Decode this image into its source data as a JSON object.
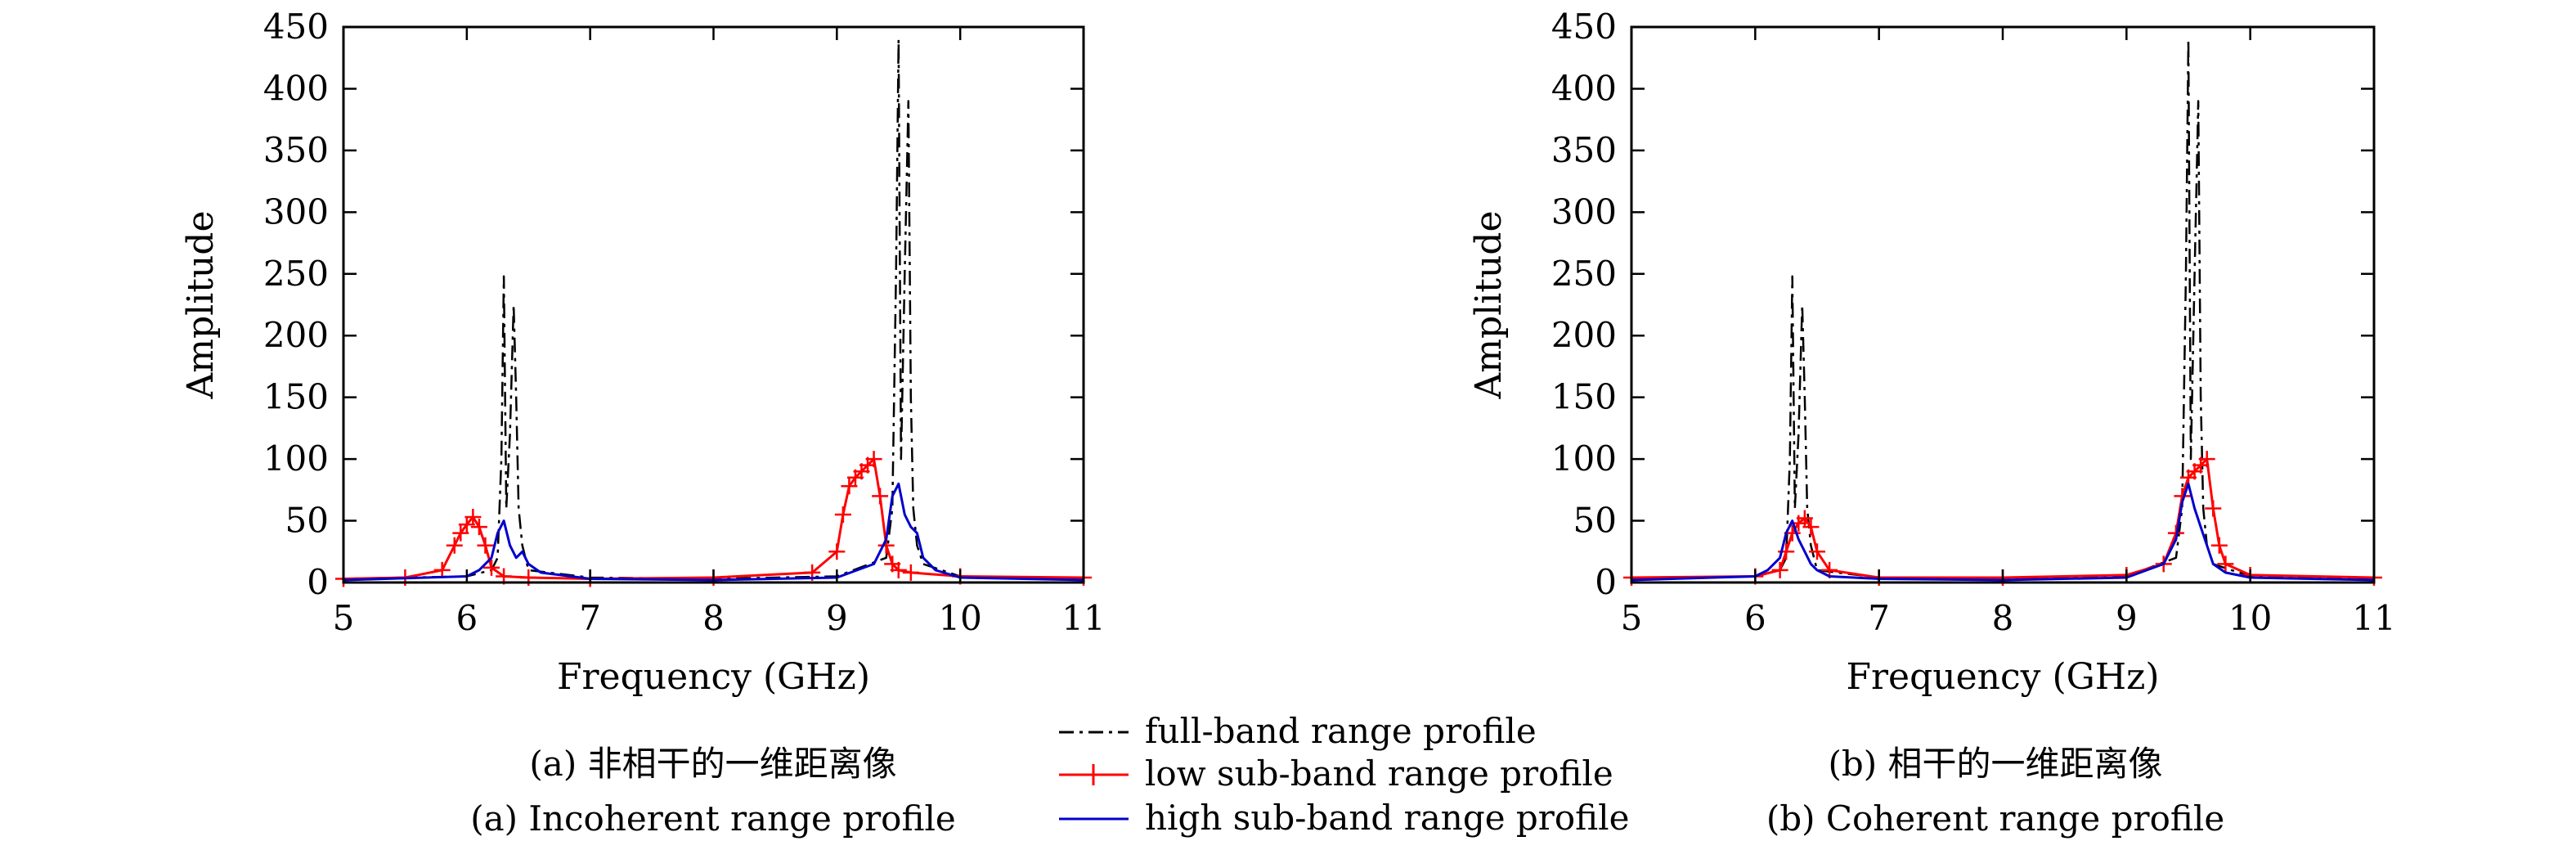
{
  "legend": {
    "items": [
      {
        "label": "full-band range profile",
        "color": "#000000",
        "style": "dash-dot"
      },
      {
        "label": "low sub-band range profile",
        "color": "#ff0000",
        "style": "line-plus"
      },
      {
        "label": "high sub-band range profile",
        "color": "#0000cc",
        "style": "line"
      }
    ]
  },
  "chart_data": [
    {
      "type": "line",
      "caption_cn": "(a) 非相干的一维距离像",
      "caption_en": "(a) Incoherent range profile",
      "xlabel": "Frequency (GHz)",
      "ylabel": "Amplitude",
      "xlim": [
        5,
        11
      ],
      "ylim": [
        0,
        450
      ],
      "xticks": [
        5,
        6,
        7,
        8,
        9,
        10,
        11
      ],
      "yticks": [
        0,
        50,
        100,
        150,
        200,
        250,
        300,
        350,
        400,
        450
      ],
      "grid": false,
      "series": [
        {
          "name": "full-band range profile",
          "x": [
            5.0,
            6.0,
            6.2,
            6.25,
            6.28,
            6.3,
            6.32,
            6.35,
            6.38,
            6.4,
            6.42,
            6.45,
            6.5,
            7.0,
            8.0,
            9.0,
            9.4,
            9.45,
            9.48,
            9.5,
            9.52,
            9.55,
            9.58,
            9.6,
            9.62,
            9.65,
            9.7,
            10.0,
            11.0
          ],
          "y": [
            3,
            5,
            10,
            20,
            100,
            248,
            60,
            120,
            225,
            150,
            60,
            30,
            10,
            4,
            3,
            5,
            20,
            60,
            250,
            440,
            100,
            250,
            390,
            150,
            60,
            30,
            15,
            5,
            3
          ]
        },
        {
          "name": "low sub-band range profile",
          "x": [
            5.0,
            5.5,
            5.8,
            5.9,
            5.95,
            6.0,
            6.05,
            6.1,
            6.15,
            6.2,
            6.3,
            6.5,
            7.0,
            8.0,
            8.8,
            9.0,
            9.05,
            9.1,
            9.15,
            9.2,
            9.25,
            9.3,
            9.35,
            9.4,
            9.45,
            9.5,
            9.6,
            10.0,
            11.0
          ],
          "y": [
            3,
            4,
            10,
            30,
            40,
            47,
            53,
            45,
            30,
            12,
            5,
            4,
            3,
            4,
            8,
            25,
            55,
            78,
            85,
            90,
            95,
            100,
            70,
            30,
            15,
            10,
            8,
            5,
            4
          ]
        },
        {
          "name": "high sub-band range profile",
          "x": [
            5.0,
            6.0,
            6.1,
            6.2,
            6.25,
            6.3,
            6.35,
            6.4,
            6.45,
            6.5,
            6.6,
            7.0,
            8.0,
            9.0,
            9.3,
            9.4,
            9.45,
            9.5,
            9.55,
            9.6,
            9.65,
            9.7,
            9.8,
            10.0,
            11.0
          ],
          "y": [
            2,
            5,
            10,
            20,
            40,
            50,
            30,
            20,
            25,
            15,
            8,
            3,
            2,
            4,
            15,
            35,
            70,
            80,
            55,
            45,
            40,
            20,
            10,
            4,
            2
          ]
        }
      ]
    },
    {
      "type": "line",
      "caption_cn": "(b) 相干的一维距离像",
      "caption_en": "(b) Coherent range profile",
      "xlabel": "Frequency (GHz)",
      "ylabel": "Amplitude",
      "xlim": [
        5,
        11
      ],
      "ylim": [
        0,
        450
      ],
      "xticks": [
        5,
        6,
        7,
        8,
        9,
        10,
        11
      ],
      "yticks": [
        0,
        50,
        100,
        150,
        200,
        250,
        300,
        350,
        400,
        450
      ],
      "grid": false,
      "series": [
        {
          "name": "full-band range profile",
          "x": [
            5.0,
            6.0,
            6.2,
            6.25,
            6.28,
            6.3,
            6.32,
            6.35,
            6.38,
            6.4,
            6.42,
            6.45,
            6.5,
            7.0,
            8.0,
            9.0,
            9.4,
            9.45,
            9.48,
            9.5,
            9.52,
            9.55,
            9.58,
            9.6,
            9.62,
            9.65,
            9.7,
            10.0,
            11.0
          ],
          "y": [
            3,
            5,
            10,
            20,
            100,
            248,
            60,
            120,
            225,
            150,
            60,
            30,
            10,
            4,
            3,
            5,
            20,
            60,
            250,
            440,
            100,
            250,
            390,
            150,
            60,
            30,
            15,
            5,
            3
          ]
        },
        {
          "name": "low sub-band range profile",
          "x": [
            5.0,
            6.0,
            6.2,
            6.25,
            6.3,
            6.35,
            6.4,
            6.45,
            6.5,
            6.6,
            7.0,
            8.0,
            9.0,
            9.3,
            9.4,
            9.45,
            9.5,
            9.55,
            9.6,
            9.65,
            9.7,
            9.75,
            9.8,
            10.0,
            11.0
          ],
          "y": [
            4,
            5,
            10,
            25,
            40,
            48,
            52,
            45,
            25,
            10,
            4,
            4,
            6,
            15,
            40,
            70,
            85,
            90,
            95,
            100,
            60,
            30,
            15,
            6,
            4
          ]
        },
        {
          "name": "high sub-band range profile",
          "x": [
            5.0,
            6.0,
            6.1,
            6.2,
            6.25,
            6.3,
            6.35,
            6.4,
            6.45,
            6.5,
            6.6,
            7.0,
            8.0,
            9.0,
            9.3,
            9.4,
            9.45,
            9.5,
            9.55,
            9.6,
            9.65,
            9.7,
            9.8,
            10.0,
            11.0
          ],
          "y": [
            2,
            5,
            10,
            20,
            40,
            50,
            35,
            25,
            15,
            10,
            5,
            3,
            2,
            4,
            15,
            35,
            65,
            80,
            60,
            45,
            30,
            15,
            8,
            4,
            2
          ]
        }
      ]
    }
  ]
}
